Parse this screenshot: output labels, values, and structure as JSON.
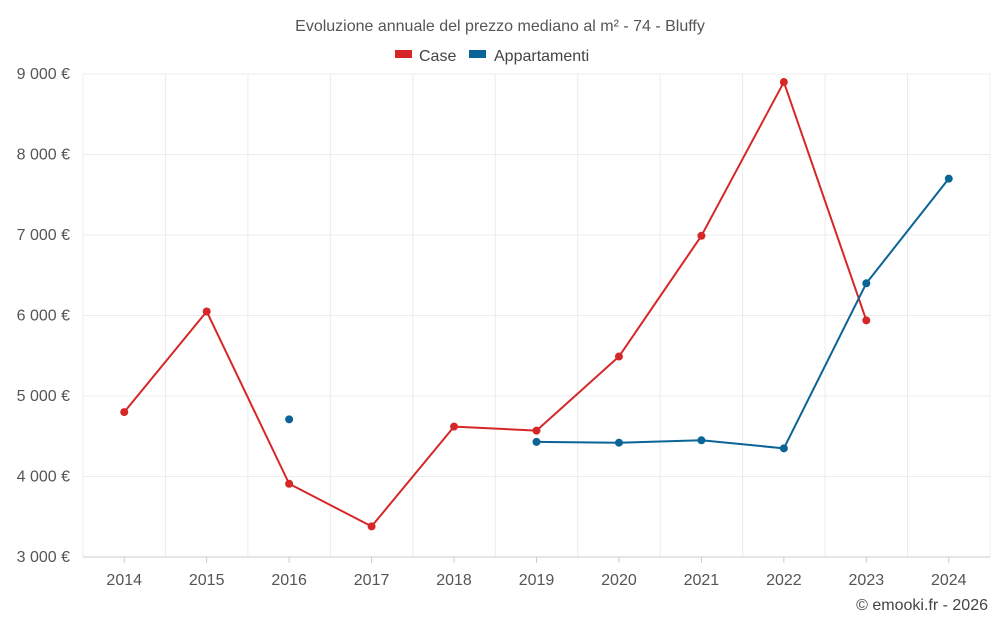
{
  "chart_data": {
    "type": "line",
    "title": "Evoluzione annuale del prezzo mediano al m² - 74 - Bluffy",
    "xlabel": "",
    "ylabel": "",
    "categories": [
      "2014",
      "2015",
      "2016",
      "2017",
      "2018",
      "2019",
      "2020",
      "2021",
      "2022",
      "2023",
      "2024"
    ],
    "ylim": [
      3000,
      9000
    ],
    "yticks": [
      3000,
      4000,
      5000,
      6000,
      7000,
      8000,
      9000
    ],
    "ytick_labels": [
      "3 000 €",
      "4 000 €",
      "5 000 €",
      "6 000 €",
      "7 000 €",
      "8 000 €",
      "9 000 €"
    ],
    "grid": true,
    "legend_position": "top-center",
    "series": [
      {
        "name": "Case",
        "color": "#d62728",
        "values": [
          4800,
          6050,
          3910,
          3380,
          4620,
          4570,
          5490,
          6990,
          8900,
          5940,
          null
        ]
      },
      {
        "name": "Appartamenti",
        "color": "#0b6496",
        "values": [
          null,
          null,
          4710,
          null,
          null,
          4430,
          4420,
          4450,
          4350,
          6400,
          7700
        ]
      }
    ]
  },
  "credit": "© emooki.fr - 2026"
}
